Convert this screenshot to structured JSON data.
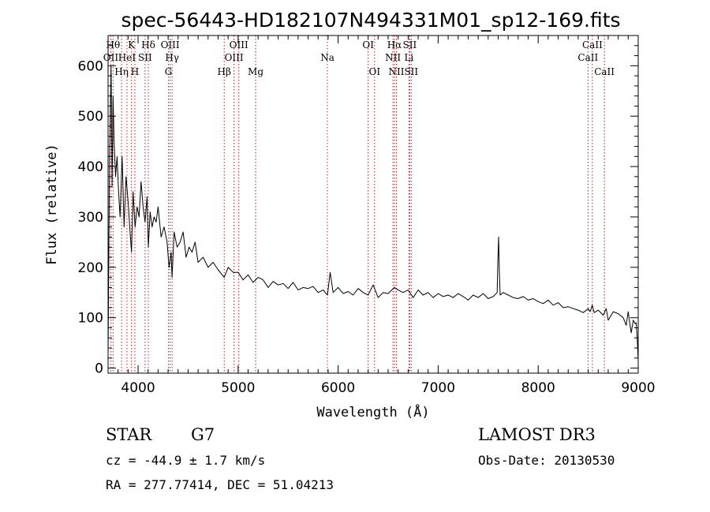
{
  "chart_data": {
    "type": "line",
    "title": "spec-56443-HD182107N494331M01_sp12-169.fits",
    "xlabel": "Wavelength (Å)",
    "ylabel": "Flux (relative)",
    "xlim": [
      3700,
      9000
    ],
    "ylim": [
      -10,
      660
    ],
    "xticks": [
      4000,
      5000,
      6000,
      7000,
      8000,
      9000
    ],
    "yticks": [
      0,
      100,
      200,
      300,
      400,
      500,
      600
    ],
    "series": [
      {
        "name": "Flux",
        "x": [
          3700,
          3715,
          3730,
          3740,
          3750,
          3760,
          3775,
          3790,
          3805,
          3820,
          3840,
          3860,
          3880,
          3900,
          3920,
          3934,
          3950,
          3970,
          3990,
          4010,
          4030,
          4050,
          4070,
          4090,
          4102,
          4120,
          4140,
          4160,
          4180,
          4200,
          4230,
          4260,
          4290,
          4310,
          4330,
          4340,
          4360,
          4390,
          4420,
          4450,
          4480,
          4510,
          4540,
          4570,
          4600,
          4650,
          4700,
          4750,
          4800,
          4861,
          4900,
          4950,
          5000,
          5050,
          5100,
          5150,
          5200,
          5250,
          5300,
          5350,
          5400,
          5450,
          5500,
          5550,
          5600,
          5650,
          5700,
          5750,
          5800,
          5850,
          5893,
          5920,
          5950,
          6000,
          6050,
          6100,
          6150,
          6200,
          6250,
          6300,
          6350,
          6400,
          6450,
          6500,
          6563,
          6600,
          6650,
          6700,
          6750,
          6800,
          6850,
          6900,
          6950,
          7000,
          7050,
          7100,
          7150,
          7200,
          7250,
          7300,
          7350,
          7400,
          7450,
          7500,
          7550,
          7590,
          7598,
          7605,
          7612,
          7620,
          7650,
          7700,
          7750,
          7800,
          7850,
          7900,
          7950,
          8000,
          8050,
          8100,
          8150,
          8200,
          8250,
          8300,
          8350,
          8400,
          8450,
          8500,
          8520,
          8540,
          8560,
          8600,
          8650,
          8680,
          8700,
          8750,
          8800,
          8850,
          8880,
          8900,
          8930,
          8950,
          8970,
          8980,
          8990,
          9000
        ],
        "values": [
          30,
          420,
          600,
          360,
          540,
          450,
          380,
          420,
          350,
          300,
          420,
          280,
          380,
          330,
          270,
          230,
          350,
          280,
          320,
          300,
          370,
          320,
          290,
          340,
          240,
          310,
          280,
          300,
          290,
          320,
          260,
          280,
          250,
          200,
          230,
          180,
          270,
          240,
          250,
          270,
          220,
          240,
          230,
          250,
          210,
          220,
          200,
          210,
          195,
          180,
          200,
          190,
          190,
          175,
          185,
          170,
          180,
          175,
          160,
          172,
          165,
          168,
          158,
          170,
          155,
          160,
          158,
          162,
          150,
          155,
          145,
          190,
          150,
          160,
          148,
          152,
          145,
          158,
          150,
          145,
          165,
          140,
          150,
          148,
          160,
          155,
          150,
          155,
          140,
          155,
          145,
          150,
          140,
          148,
          142,
          145,
          140,
          148,
          142,
          135,
          145,
          140,
          148,
          138,
          142,
          150,
          220,
          260,
          190,
          145,
          150,
          145,
          140,
          138,
          142,
          135,
          138,
          132,
          128,
          135,
          125,
          130,
          120,
          122,
          118,
          115,
          110,
          118,
          112,
          125,
          110,
          115,
          105,
          118,
          95,
          112,
          108,
          100,
          85,
          112,
          70,
          95,
          88,
          90,
          60,
          15
        ]
      }
    ],
    "spectral_lines": [
      {
        "label": "OII",
        "wl": 3727,
        "row": 2
      },
      {
        "label": "Hθ",
        "wl": 3750,
        "row": 1
      },
      {
        "label": "Hη",
        "wl": 3835,
        "row": 3
      },
      {
        "label": "HeI",
        "wl": 3889,
        "row": 2
      },
      {
        "label": "K",
        "wl": 3934,
        "row": 1
      },
      {
        "label": "H",
        "wl": 3968,
        "row": 3
      },
      {
        "label": "SII",
        "wl": 4070,
        "row": 2
      },
      {
        "label": "Hδ",
        "wl": 4102,
        "row": 1
      },
      {
        "label": "G",
        "wl": 4304,
        "row": 3
      },
      {
        "label": "OIII",
        "wl": 4320,
        "row": 1
      },
      {
        "label": "Hγ",
        "wl": 4340,
        "row": 2
      },
      {
        "label": "Hβ",
        "wl": 4861,
        "row": 3
      },
      {
        "label": "OIII",
        "wl": 4959,
        "row": 2
      },
      {
        "label": "OIII",
        "wl": 5007,
        "row": 1
      },
      {
        "label": "Mg",
        "wl": 5175,
        "row": 3
      },
      {
        "label": "Na",
        "wl": 5893,
        "row": 2
      },
      {
        "label": "OI",
        "wl": 6300,
        "row": 1
      },
      {
        "label": "OI",
        "wl": 6364,
        "row": 3
      },
      {
        "label": "NII",
        "wl": 6548,
        "row": 2
      },
      {
        "label": "Hα",
        "wl": 6563,
        "row": 1
      },
      {
        "label": "NII",
        "wl": 6583,
        "row": 3
      },
      {
        "label": "SII",
        "wl": 6716,
        "row": 1
      },
      {
        "label": "Li",
        "wl": 6708,
        "row": 2
      },
      {
        "label": "SII",
        "wl": 6731,
        "row": 3
      },
      {
        "label": "CaII",
        "wl": 8498,
        "row": 2
      },
      {
        "label": "CaII",
        "wl": 8542,
        "row": 1
      },
      {
        "label": "CaII",
        "wl": 8662,
        "row": 3
      }
    ],
    "colors": {
      "spectrum": "#000000",
      "line_marker": "#b22222",
      "axes": "#000000"
    }
  },
  "footer": {
    "object_class": "STAR",
    "subclass": "G7",
    "survey": "LAMOST DR3",
    "redshift": "cz = -44.9 ± 1.7 km/s",
    "obs_date": "Obs-Date: 20130530",
    "coords": "RA = 277.77414, DEC =  51.04213"
  }
}
